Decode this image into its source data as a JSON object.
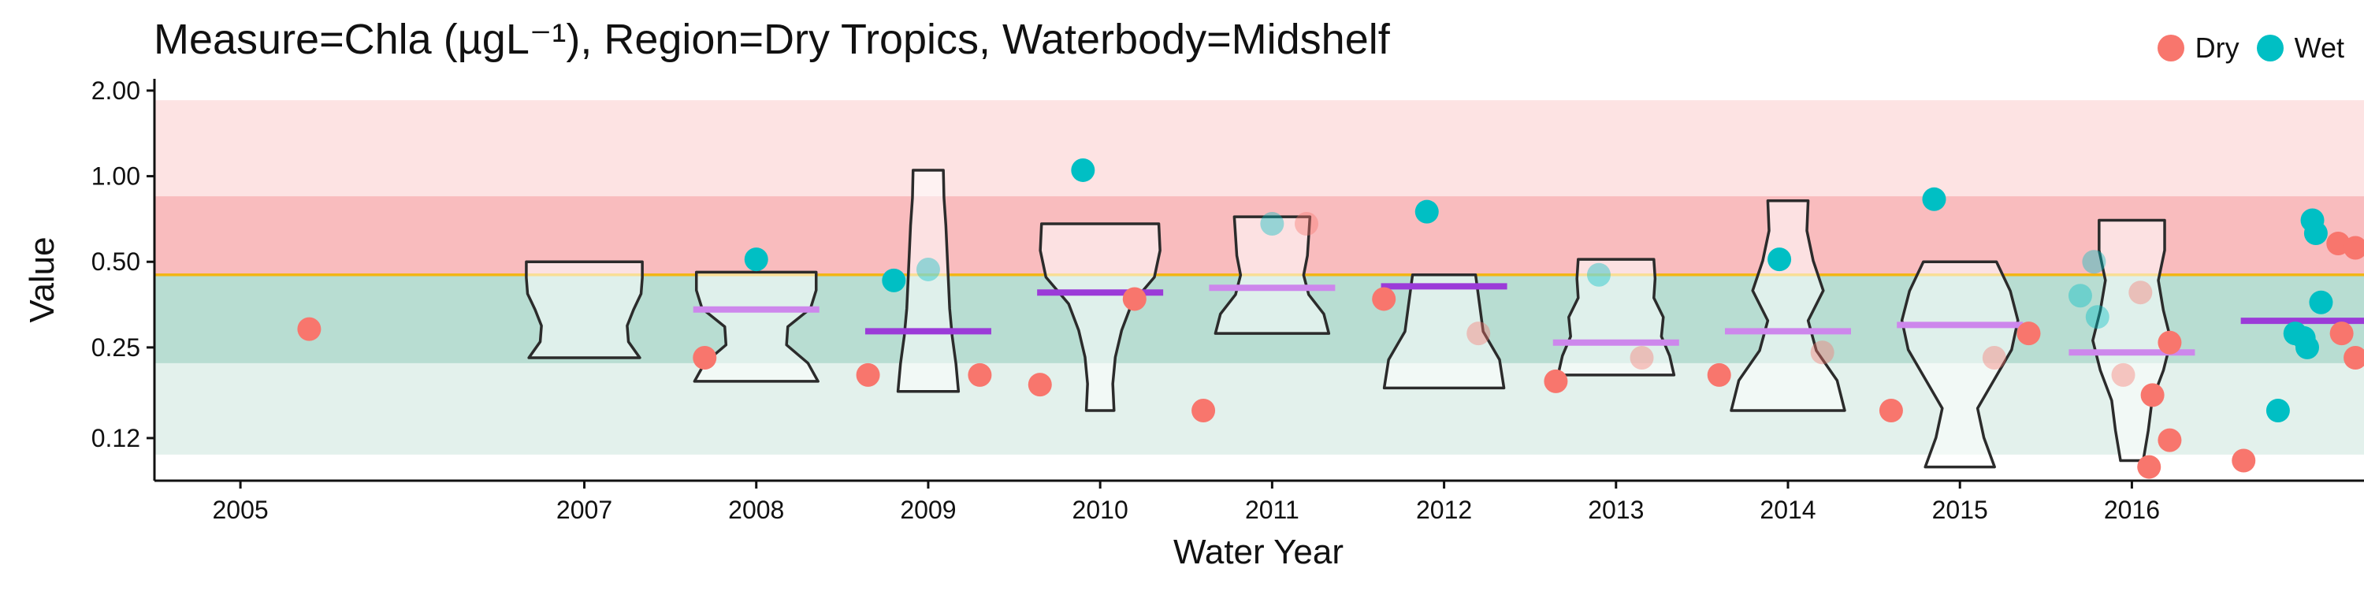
{
  "chart_data": {
    "type": "violin+scatter",
    "title": "Measure=Chla (µgL⁻¹), Region=Dry Tropics, Waterbody=Midshelf",
    "xlabel": "Water Year",
    "ylabel": "Value",
    "y_scale": "log",
    "ylim": [
      0.085,
      2.2
    ],
    "yticks": [
      0.12,
      0.25,
      0.5,
      1.0,
      2.0
    ],
    "ytick_labels": [
      "0.12",
      "0.25",
      "0.50",
      "1.00",
      "2.00"
    ],
    "xlim": [
      2004.5,
      2017.35
    ],
    "x_ticks": [
      2005,
      2007,
      2008,
      2009,
      2010,
      2011,
      2012,
      2013,
      2014,
      2015,
      2016
    ],
    "x_tick_labels": [
      "2005",
      "2007",
      "2008",
      "2009",
      "2010",
      "2011",
      "2012",
      "2013",
      "2014",
      "2015",
      "2016"
    ],
    "guideline": 0.45,
    "bands": [
      {
        "from": 0.85,
        "to": 1.85,
        "color": "#fde3e3"
      },
      {
        "from": 0.45,
        "to": 0.85,
        "color": "#f9bcbe"
      },
      {
        "from": 0.22,
        "to": 0.45,
        "color": "#b8ddd2"
      },
      {
        "from": 0.105,
        "to": 0.22,
        "color": "#e3f1ec"
      }
    ],
    "legend": {
      "position": "top-right",
      "entries": [
        {
          "name": "Dry",
          "color": "#f8766d"
        },
        {
          "name": "Wet",
          "color": "#00bfc4"
        }
      ]
    },
    "violins": [
      {
        "year": 2007,
        "min": 0.23,
        "max": 0.5,
        "profile": [
          0.88,
          0.7,
          0.68,
          0.78,
          0.9,
          0.92,
          0.92
        ]
      },
      {
        "year": 2008,
        "min": 0.19,
        "max": 0.46,
        "profile": [
          0.98,
          0.82,
          0.48,
          0.5,
          0.86,
          0.95,
          0.95
        ]
      },
      {
        "year": 2009,
        "min": 0.175,
        "max": 1.05,
        "profile": [
          0.48,
          0.44,
          0.38,
          0.34,
          0.32,
          0.3,
          0.28,
          0.25,
          0.24
        ]
      },
      {
        "year": 2010,
        "min": 0.15,
        "max": 0.68,
        "profile": [
          0.22,
          0.2,
          0.24,
          0.34,
          0.5,
          0.86,
          0.95,
          0.93
        ]
      },
      {
        "year": 2011,
        "min": 0.28,
        "max": 0.72,
        "profile": [
          0.9,
          0.82,
          0.58,
          0.5,
          0.56,
          0.58,
          0.6
        ]
      },
      {
        "year": 2012,
        "min": 0.18,
        "max": 0.45,
        "profile": [
          0.95,
          0.88,
          0.62,
          0.56,
          0.5
        ]
      },
      {
        "year": 2013,
        "min": 0.2,
        "max": 0.51,
        "profile": [
          0.92,
          0.85,
          0.72,
          0.75,
          0.6,
          0.62,
          0.6
        ]
      },
      {
        "year": 2014,
        "min": 0.15,
        "max": 0.82,
        "profile": [
          0.9,
          0.78,
          0.45,
          0.32,
          0.56,
          0.4,
          0.3,
          0.32
        ]
      },
      {
        "year": 2015,
        "min": 0.095,
        "max": 0.5,
        "profile": [
          0.55,
          0.38,
          0.28,
          0.55,
          0.82,
          0.92,
          0.8,
          0.58
        ]
      },
      {
        "year": 2016,
        "min": 0.1,
        "max": 0.7,
        "profile": [
          0.18,
          0.26,
          0.32,
          0.5,
          0.62,
          0.5,
          0.42,
          0.52,
          0.52
        ]
      }
    ],
    "medians": [
      {
        "year": 2008,
        "value": 0.34,
        "color": "#cd87ec"
      },
      {
        "year": 2009,
        "value": 0.285,
        "color": "#9b3bd8"
      },
      {
        "year": 2010,
        "value": 0.39,
        "color": "#9b3bd8"
      },
      {
        "year": 2011,
        "value": 0.405,
        "color": "#cd87ec"
      },
      {
        "year": 2012,
        "value": 0.41,
        "color": "#9b3bd8"
      },
      {
        "year": 2013,
        "value": 0.26,
        "color": "#cd87ec"
      },
      {
        "year": 2014,
        "value": 0.285,
        "color": "#cd87ec"
      },
      {
        "year": 2015,
        "value": 0.3,
        "color": "#cd87ec"
      },
      {
        "year": 2016,
        "value": 0.24,
        "color": "#cd87ec"
      },
      {
        "year": 2017,
        "value": 0.31,
        "color": "#9b3bd8"
      }
    ],
    "points": [
      {
        "x": 2005.4,
        "y": 0.29,
        "season": "Dry",
        "faded": false
      },
      {
        "x": 2007.7,
        "y": 0.23,
        "season": "Dry",
        "faded": false
      },
      {
        "x": 2008.0,
        "y": 0.51,
        "season": "Wet",
        "faded": false
      },
      {
        "x": 2008.65,
        "y": 0.2,
        "season": "Dry",
        "faded": false
      },
      {
        "x": 2008.8,
        "y": 0.43,
        "season": "Wet",
        "faded": false
      },
      {
        "x": 2009.0,
        "y": 0.47,
        "season": "Wet",
        "faded": true
      },
      {
        "x": 2009.3,
        "y": 0.2,
        "season": "Dry",
        "faded": false
      },
      {
        "x": 2009.65,
        "y": 0.185,
        "season": "Dry",
        "faded": false
      },
      {
        "x": 2009.9,
        "y": 1.05,
        "season": "Wet",
        "faded": false
      },
      {
        "x": 2010.2,
        "y": 0.37,
        "season": "Dry",
        "faded": false
      },
      {
        "x": 2010.6,
        "y": 0.15,
        "season": "Dry",
        "faded": false
      },
      {
        "x": 2011.0,
        "y": 0.68,
        "season": "Wet",
        "faded": true
      },
      {
        "x": 2011.2,
        "y": 0.68,
        "season": "Dry",
        "faded": true
      },
      {
        "x": 2011.65,
        "y": 0.37,
        "season": "Dry",
        "faded": false
      },
      {
        "x": 2011.9,
        "y": 0.75,
        "season": "Wet",
        "faded": false
      },
      {
        "x": 2012.2,
        "y": 0.28,
        "season": "Dry",
        "faded": true
      },
      {
        "x": 2012.65,
        "y": 0.19,
        "season": "Dry",
        "faded": false
      },
      {
        "x": 2012.9,
        "y": 0.45,
        "season": "Wet",
        "faded": true
      },
      {
        "x": 2013.15,
        "y": 0.23,
        "season": "Dry",
        "faded": true
      },
      {
        "x": 2013.6,
        "y": 0.2,
        "season": "Dry",
        "faded": false
      },
      {
        "x": 2013.95,
        "y": 0.51,
        "season": "Wet",
        "faded": false
      },
      {
        "x": 2014.2,
        "y": 0.24,
        "season": "Dry",
        "faded": true
      },
      {
        "x": 2014.6,
        "y": 0.15,
        "season": "Dry",
        "faded": false
      },
      {
        "x": 2014.85,
        "y": 0.83,
        "season": "Wet",
        "faded": false
      },
      {
        "x": 2015.2,
        "y": 0.23,
        "season": "Dry",
        "faded": true
      },
      {
        "x": 2015.4,
        "y": 0.28,
        "season": "Dry",
        "faded": false
      },
      {
        "x": 2015.7,
        "y": 0.38,
        "season": "Wet",
        "faded": true
      },
      {
        "x": 2015.78,
        "y": 0.5,
        "season": "Wet",
        "faded": true
      },
      {
        "x": 2015.8,
        "y": 0.32,
        "season": "Wet",
        "faded": true
      },
      {
        "x": 2015.95,
        "y": 0.2,
        "season": "Dry",
        "faded": true
      },
      {
        "x": 2016.05,
        "y": 0.39,
        "season": "Dry",
        "faded": true
      },
      {
        "x": 2016.12,
        "y": 0.17,
        "season": "Dry",
        "faded": false
      },
      {
        "x": 2016.22,
        "y": 0.26,
        "season": "Dry",
        "faded": false
      },
      {
        "x": 2016.1,
        "y": 0.095,
        "season": "Dry",
        "faded": false
      },
      {
        "x": 2016.22,
        "y": 0.118,
        "season": "Dry",
        "faded": false
      },
      {
        "x": 2016.65,
        "y": 0.1,
        "season": "Dry",
        "faded": false
      },
      {
        "x": 2016.85,
        "y": 0.15,
        "season": "Wet",
        "faded": false
      },
      {
        "x": 2016.95,
        "y": 0.28,
        "season": "Wet",
        "faded": false
      },
      {
        "x": 2017.0,
        "y": 0.27,
        "season": "Wet",
        "faded": false
      },
      {
        "x": 2017.02,
        "y": 0.25,
        "season": "Wet",
        "faded": false
      },
      {
        "x": 2017.1,
        "y": 0.36,
        "season": "Wet",
        "faded": false
      },
      {
        "x": 2017.05,
        "y": 0.7,
        "season": "Wet",
        "faded": false
      },
      {
        "x": 2017.07,
        "y": 0.63,
        "season": "Wet",
        "faded": false
      },
      {
        "x": 2017.2,
        "y": 0.58,
        "season": "Dry",
        "faded": false
      },
      {
        "x": 2017.3,
        "y": 0.56,
        "season": "Dry",
        "faded": false
      },
      {
        "x": 2017.22,
        "y": 0.28,
        "season": "Dry",
        "faded": false
      },
      {
        "x": 2017.3,
        "y": 0.23,
        "season": "Dry",
        "faded": false
      }
    ],
    "grid": false
  }
}
